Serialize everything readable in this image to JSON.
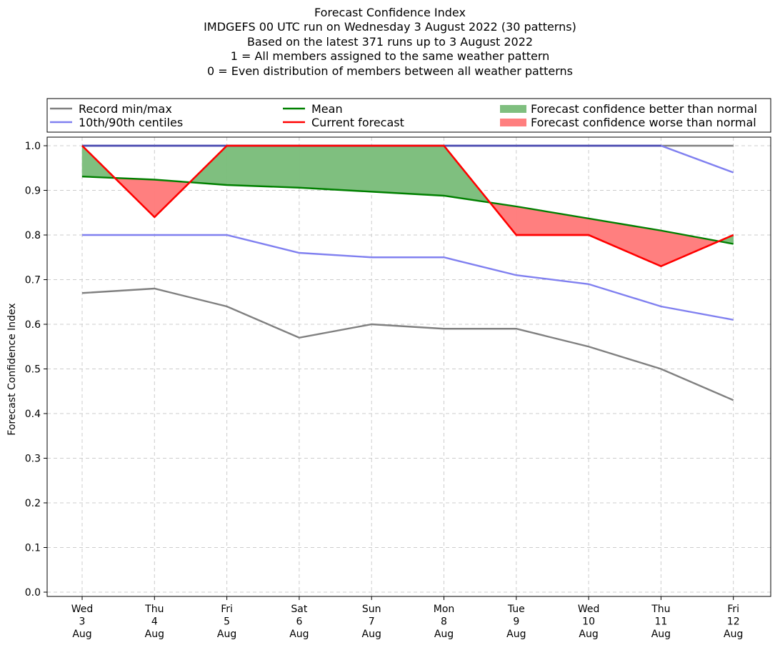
{
  "chart_data": {
    "type": "line",
    "title_lines": [
      "Forecast Confidence Index",
      "IMDGEFS 00 UTC run on Wednesday 3 August 2022 (30 patterns)",
      "Based on the latest 371 runs up to 3 August 2022",
      "1 = All members assigned to the same weather pattern",
      "0 = Even distribution of members between all weather patterns"
    ],
    "ylabel": "Forecast Confidence Index",
    "ylim": [
      0.0,
      1.0
    ],
    "yticks": [
      "0.0",
      "0.1",
      "0.2",
      "0.3",
      "0.4",
      "0.5",
      "0.6",
      "0.7",
      "0.8",
      "0.9",
      "1.0"
    ],
    "grid": true,
    "legend_position": "top",
    "categories": [
      [
        "Wed",
        "3",
        "Aug"
      ],
      [
        "Thu",
        "4",
        "Aug"
      ],
      [
        "Fri",
        "5",
        "Aug"
      ],
      [
        "Sat",
        "6",
        "Aug"
      ],
      [
        "Sun",
        "7",
        "Aug"
      ],
      [
        "Mon",
        "8",
        "Aug"
      ],
      [
        "Tue",
        "9",
        "Aug"
      ],
      [
        "Wed",
        "10",
        "Aug"
      ],
      [
        "Thu",
        "11",
        "Aug"
      ],
      [
        "Fri",
        "12",
        "Aug"
      ]
    ],
    "series": [
      {
        "name": "Record min/max",
        "key": "record_min",
        "color": "#808080",
        "values": [
          0.67,
          0.68,
          0.64,
          0.57,
          0.6,
          0.59,
          0.59,
          0.55,
          0.5,
          0.43
        ]
      },
      {
        "key": "record_max",
        "color": "#808080",
        "values": [
          1.0,
          1.0,
          1.0,
          1.0,
          1.0,
          1.0,
          1.0,
          1.0,
          1.0,
          1.0
        ]
      },
      {
        "name": "10th/90th centiles",
        "key": "p10",
        "color": "#8080f0",
        "values": [
          0.8,
          0.8,
          0.8,
          0.76,
          0.75,
          0.75,
          0.71,
          0.69,
          0.64,
          0.61
        ]
      },
      {
        "key": "p90",
        "color": "#8080f0",
        "values": [
          1.0,
          1.0,
          1.0,
          1.0,
          1.0,
          1.0,
          1.0,
          1.0,
          1.0,
          0.94
        ]
      },
      {
        "name": "Mean",
        "key": "mean",
        "color": "#008000",
        "values": [
          0.931,
          0.924,
          0.912,
          0.906,
          0.897,
          0.888,
          0.864,
          0.837,
          0.81,
          0.78
        ]
      },
      {
        "name": "Current forecast",
        "key": "current",
        "color": "#ff0000",
        "values": [
          1.0,
          0.84,
          1.0,
          1.0,
          1.0,
          1.0,
          0.8,
          0.8,
          0.73,
          0.8
        ]
      }
    ],
    "fills": [
      {
        "name": "Forecast confidence better than normal",
        "color": "#7fbf7f"
      },
      {
        "name": "Forecast confidence worse than normal",
        "color": "#ff7f7f"
      }
    ]
  }
}
